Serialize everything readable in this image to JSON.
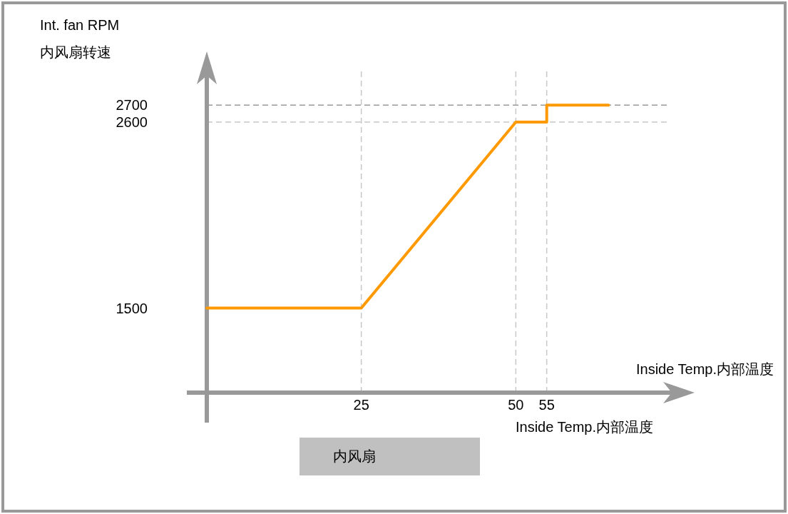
{
  "chart_data": {
    "type": "line",
    "ylabel": "Int. fan RPM\n内风扇转速",
    "xlabel": "Inside Temp.内部温度",
    "x": [
      0,
      25,
      50,
      55,
      55,
      65
    ],
    "series": [
      {
        "color": "#ff9900",
        "values": [
          1500,
          1500,
          2600,
          2600,
          2700,
          2700
        ]
      }
    ],
    "xlim": [
      0,
      75
    ],
    "ylim": [
      1000,
      2900
    ],
    "xticks": [
      25,
      50,
      55
    ],
    "yticks": [
      1500,
      2600,
      2700
    ],
    "marker": "none",
    "line_style": "solid",
    "ref_lines": [
      {
        "axis": "x",
        "value": 25,
        "color": "#c8c8c8",
        "line_style": "dashed"
      },
      {
        "axis": "x",
        "value": 50,
        "color": "#c8c8c8",
        "line_style": "dashed"
      },
      {
        "axis": "x",
        "value": 55,
        "color": "#c8c8c8",
        "line_style": "dashed"
      },
      {
        "axis": "y",
        "value": 2600,
        "color": "#c8c8c8",
        "line_style": "dashed"
      },
      {
        "axis": "y",
        "value": 2700,
        "color": "#999999",
        "line_style": "dashed"
      }
    ],
    "annotations": [
      "Inside Temp.内部温度",
      "内风扇"
    ]
  }
}
